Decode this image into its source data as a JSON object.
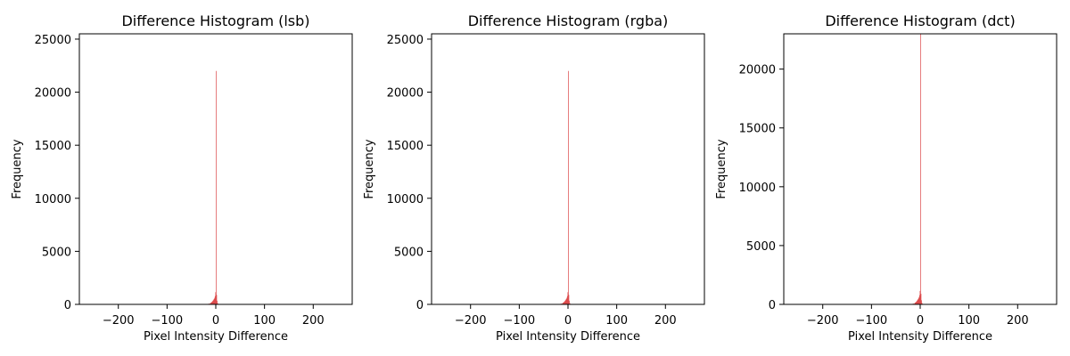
{
  "figure": {
    "background_color": "#ffffff",
    "bar_color": "#d62728"
  },
  "chart_data": [
    {
      "type": "bar",
      "title": "Difference Histogram (lsb)",
      "xlabel": "Pixel Intensity Difference",
      "ylabel": "Frequency",
      "xlim": [
        -280,
        280
      ],
      "ylim": [
        0,
        25500
      ],
      "xticks": [
        -200,
        -100,
        0,
        100,
        200
      ],
      "xtick_labels": [
        "−200",
        "−100",
        "0",
        "100",
        "200"
      ],
      "yticks": [
        0,
        5000,
        10000,
        15000,
        20000,
        25000
      ],
      "ytick_labels": [
        "0",
        "5000",
        "10000",
        "15000",
        "20000",
        "25000"
      ],
      "grid": false,
      "bar_color": "#d62728",
      "bin_width": 1,
      "x": [
        -20,
        -18,
        -16,
        -14,
        -12,
        -11,
        -10,
        -9,
        -8,
        -7,
        -6,
        -5,
        -4,
        -3,
        -2,
        -1,
        0,
        1,
        2,
        3,
        4,
        5
      ],
      "values": [
        20,
        30,
        50,
        80,
        110,
        140,
        180,
        220,
        260,
        320,
        380,
        450,
        520,
        620,
        780,
        1150,
        22000,
        900,
        350,
        120,
        50,
        20
      ]
    },
    {
      "type": "bar",
      "title": "Difference Histogram (rgba)",
      "xlabel": "Pixel Intensity Difference",
      "ylabel": "Frequency",
      "xlim": [
        -280,
        280
      ],
      "ylim": [
        0,
        25500
      ],
      "xticks": [
        -200,
        -100,
        0,
        100,
        200
      ],
      "xtick_labels": [
        "−200",
        "−100",
        "0",
        "100",
        "200"
      ],
      "yticks": [
        0,
        5000,
        10000,
        15000,
        20000,
        25000
      ],
      "ytick_labels": [
        "0",
        "5000",
        "10000",
        "15000",
        "20000",
        "25000"
      ],
      "grid": false,
      "bar_color": "#d62728",
      "bin_width": 1,
      "x": [
        -20,
        -18,
        -16,
        -14,
        -12,
        -11,
        -10,
        -9,
        -8,
        -7,
        -6,
        -5,
        -4,
        -3,
        -2,
        -1,
        0,
        1,
        2,
        3,
        4,
        5
      ],
      "values": [
        20,
        30,
        50,
        80,
        110,
        140,
        180,
        220,
        260,
        320,
        380,
        450,
        520,
        620,
        780,
        1150,
        22000,
        900,
        350,
        120,
        50,
        20
      ]
    },
    {
      "type": "bar",
      "title": "Difference Histogram (dct)",
      "xlabel": "Pixel Intensity Difference",
      "ylabel": "Frequency",
      "xlim": [
        -280,
        280
      ],
      "ylim": [
        0,
        23000
      ],
      "xticks": [
        -200,
        -100,
        0,
        100,
        200
      ],
      "xtick_labels": [
        "−200",
        "−100",
        "0",
        "100",
        "200"
      ],
      "yticks": [
        0,
        5000,
        10000,
        15000,
        20000
      ],
      "ytick_labels": [
        "0",
        "5000",
        "10000",
        "15000",
        "20000"
      ],
      "grid": false,
      "bar_color": "#d62728",
      "bin_width": 1,
      "x": [
        -20,
        -18,
        -16,
        -14,
        -12,
        -11,
        -10,
        -9,
        -8,
        -7,
        -6,
        -5,
        -4,
        -3,
        -2,
        -1,
        0,
        1,
        2,
        3,
        4,
        5
      ],
      "values": [
        20,
        30,
        50,
        80,
        110,
        140,
        180,
        220,
        260,
        320,
        380,
        450,
        520,
        620,
        780,
        1150,
        23000,
        900,
        350,
        120,
        50,
        20
      ]
    }
  ]
}
